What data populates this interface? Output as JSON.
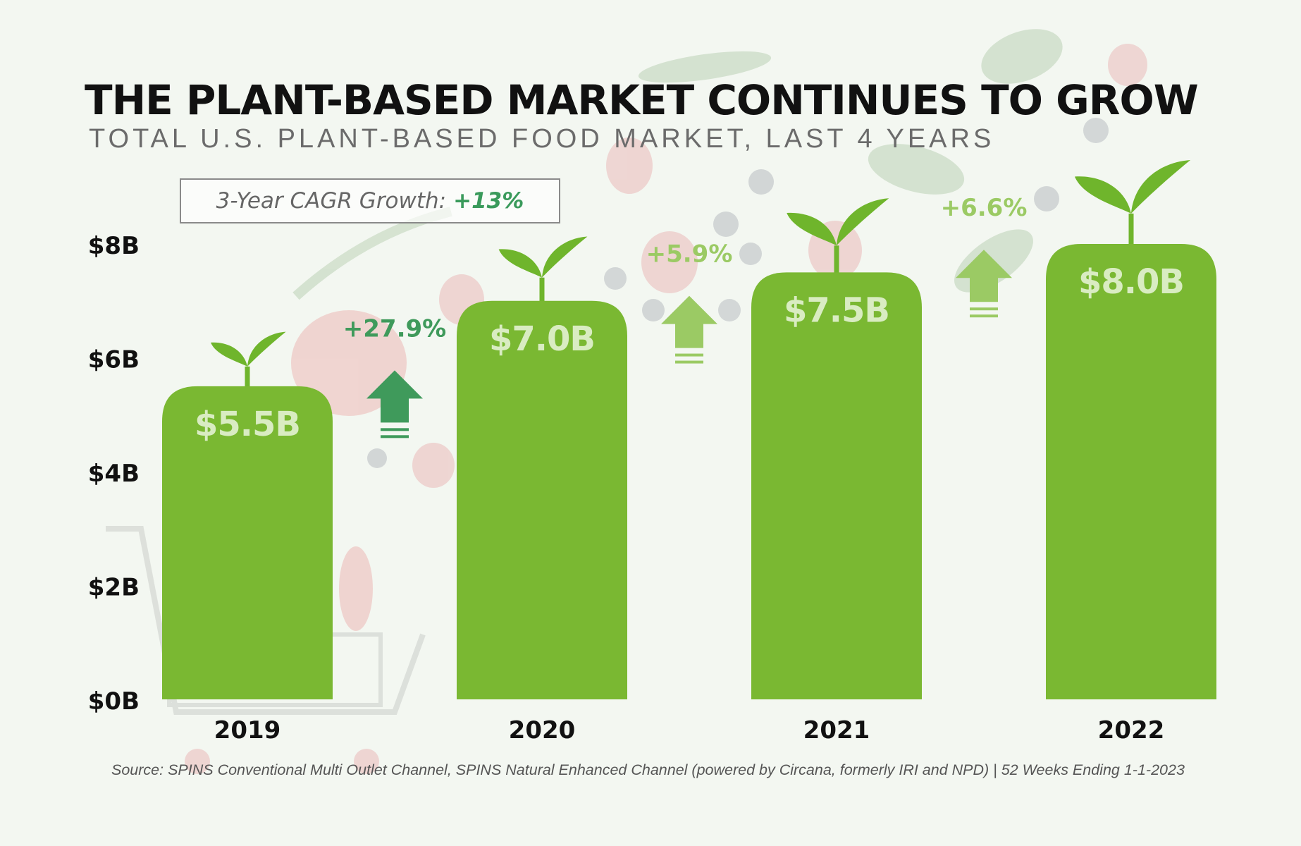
{
  "title": "THE PLANT-BASED MARKET CONTINUES TO GROW",
  "subtitle": "TOTAL U.S. PLANT-BASED FOOD MARKET, LAST 4 YEARS",
  "cagr": {
    "label": "3-Year CAGR Growth:",
    "value": "+13%"
  },
  "source": "Source: SPINS Conventional Multi Outlet Channel, SPINS Natural Enhanced Channel (powered by Circana, formerly IRI and NPD) | 52 Weeks Ending 1-1-2023",
  "colors": {
    "bar": "#7ab832",
    "bar_label": "#d9ecc2",
    "sprout": "#6fb52c",
    "growth_first": "#3f9a5b",
    "growth_other": "#9bca64",
    "axis_text": "#111111"
  },
  "icons": [
    "sprout-icon",
    "up-arrow-icon"
  ],
  "chart_data": {
    "type": "bar",
    "categories": [
      "2019",
      "2020",
      "2021",
      "2022"
    ],
    "values": [
      5.5,
      7.0,
      7.5,
      8.0
    ],
    "value_labels": [
      "$5.5B",
      "$7.0B",
      "$7.5B",
      "$8.0B"
    ],
    "growth_labels": [
      "+27.9%",
      "+5.9%",
      "+6.6%"
    ],
    "yticks": [
      0,
      2,
      4,
      6,
      8
    ],
    "ytick_labels": [
      "$0B",
      "$2B",
      "$4B",
      "$6B",
      "$8B"
    ],
    "ylim": [
      0,
      8
    ],
    "grid": false,
    "legend": "none"
  }
}
